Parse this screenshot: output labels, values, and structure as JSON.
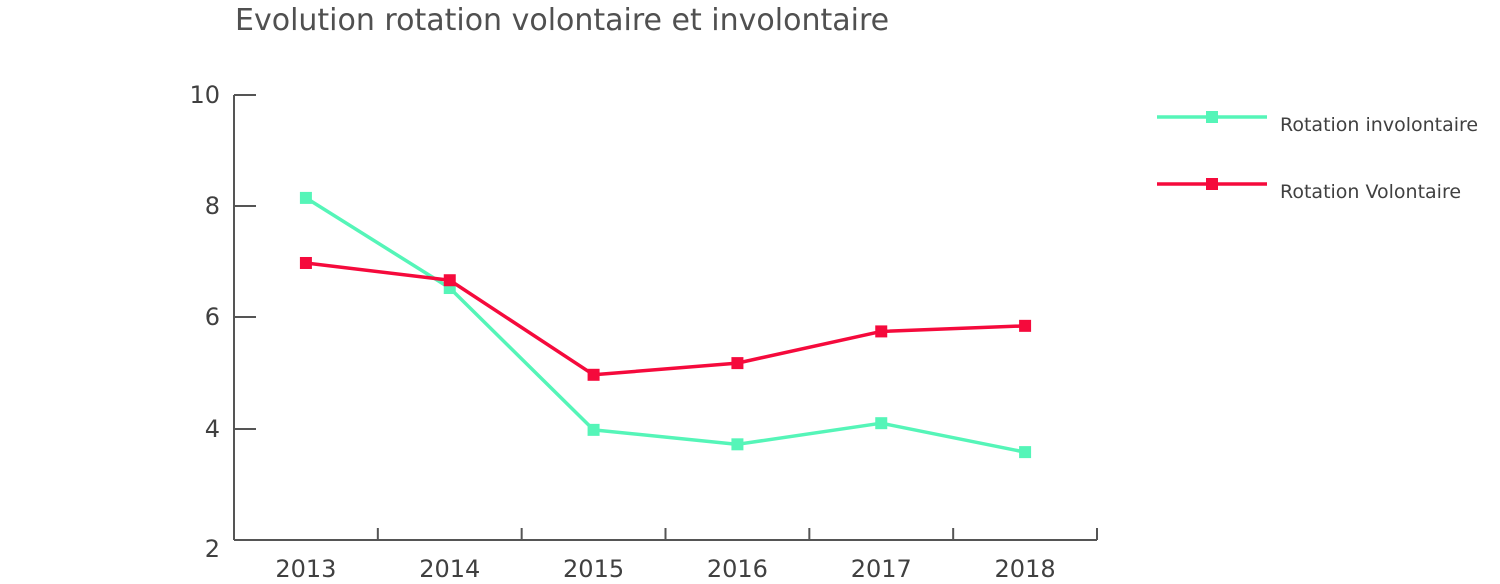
{
  "chart_data": {
    "type": "line",
    "title": "Evolution rotation volontaire et involontaire",
    "xlabel": "",
    "ylabel": "",
    "categories": [
      "2013",
      "2014",
      "2015",
      "2016",
      "2017",
      "2018"
    ],
    "y_ticks": [
      "10",
      "8",
      "6",
      "4",
      "2"
    ],
    "ylim": [
      2,
      10
    ],
    "grid": false,
    "legend_position": "right",
    "series": [
      {
        "name": "Rotation involontaire",
        "color": "#55f5b8",
        "values": [
          8.15,
          6.53,
          3.98,
          3.72,
          4.1,
          3.58
        ]
      },
      {
        "name": "Rotation Volontaire",
        "color": "#f50a3c",
        "values": [
          6.98,
          6.67,
          4.97,
          5.18,
          5.75,
          5.85
        ]
      }
    ]
  }
}
